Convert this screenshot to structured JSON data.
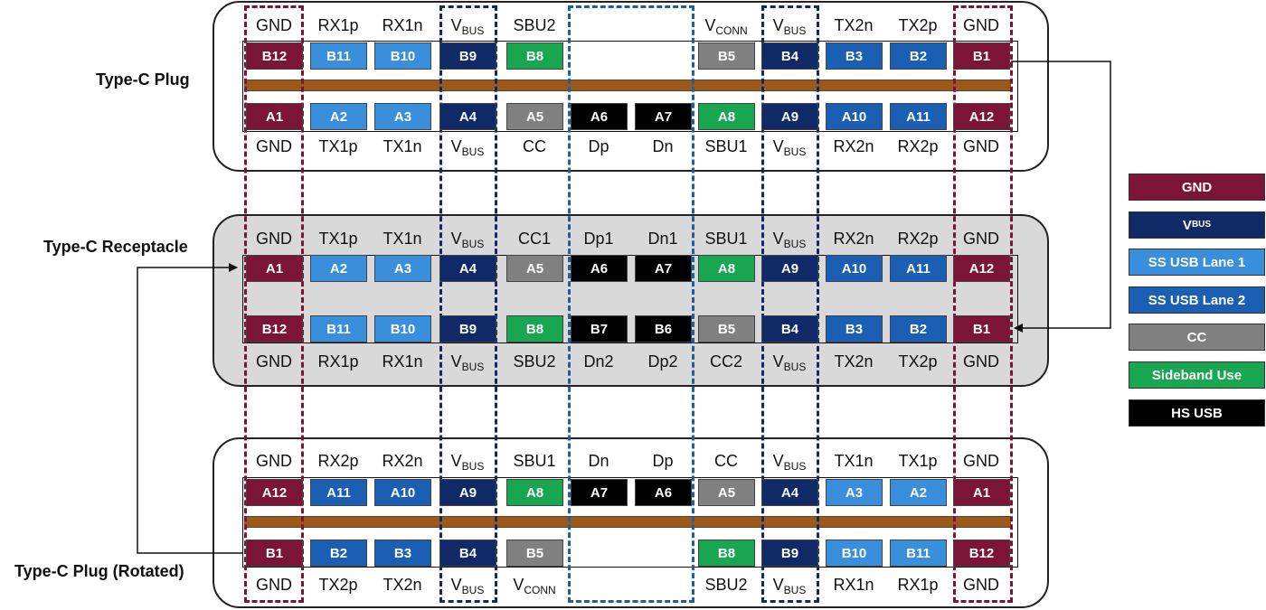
{
  "colors": {
    "gnd": "#7b1436",
    "vbus": "#0f2a66",
    "ss1": "#3a8fdc",
    "ss2": "#1b5fb5",
    "cc": "#808080",
    "sbu": "#18a750",
    "hs": "#000000",
    "empty": "#ffffff",
    "tongue": "#9a5a1e"
  },
  "labels": {
    "plug": "Type-C Plug",
    "receptacle": "Type-C Receptacle",
    "rotated": "Type-C Plug (Rotated)"
  },
  "legend": [
    {
      "key": "gnd",
      "label": "GND",
      "sub": ""
    },
    {
      "key": "vbus",
      "label": "V",
      "sub": "BUS"
    },
    {
      "key": "ss1",
      "label": "SS USB Lane 1",
      "sub": ""
    },
    {
      "key": "ss2",
      "label": "SS USB Lane 2",
      "sub": ""
    },
    {
      "key": "cc",
      "label": "CC",
      "sub": ""
    },
    {
      "key": "sbu",
      "label": "Sideband Use",
      "sub": ""
    },
    {
      "key": "hs",
      "label": "HS USB",
      "sub": ""
    }
  ],
  "plug": {
    "top_signals": [
      [
        "GND",
        ""
      ],
      [
        "RX1p",
        ""
      ],
      [
        "RX1n",
        ""
      ],
      [
        "V",
        "BUS"
      ],
      [
        "SBU2",
        ""
      ],
      [
        "",
        ""
      ],
      [
        "",
        ""
      ],
      [
        "V",
        "CONN"
      ],
      [
        "V",
        "BUS"
      ],
      [
        "TX2n",
        ""
      ],
      [
        "TX2p",
        ""
      ],
      [
        "GND",
        ""
      ]
    ],
    "top_pins": [
      [
        "B12",
        "gnd"
      ],
      [
        "B11",
        "ss1"
      ],
      [
        "B10",
        "ss1"
      ],
      [
        "B9",
        "vbus"
      ],
      [
        "B8",
        "sbu"
      ],
      [
        "",
        "empty"
      ],
      [
        "",
        "empty"
      ],
      [
        "B5",
        "cc"
      ],
      [
        "B4",
        "vbus"
      ],
      [
        "B3",
        "ss2"
      ],
      [
        "B2",
        "ss2"
      ],
      [
        "B1",
        "gnd"
      ]
    ],
    "bottom_pins": [
      [
        "A1",
        "gnd"
      ],
      [
        "A2",
        "ss1"
      ],
      [
        "A3",
        "ss1"
      ],
      [
        "A4",
        "vbus"
      ],
      [
        "A5",
        "cc"
      ],
      [
        "A6",
        "hs"
      ],
      [
        "A7",
        "hs"
      ],
      [
        "A8",
        "sbu"
      ],
      [
        "A9",
        "vbus"
      ],
      [
        "A10",
        "ss2"
      ],
      [
        "A11",
        "ss2"
      ],
      [
        "A12",
        "gnd"
      ]
    ],
    "bottom_signals": [
      [
        "GND",
        ""
      ],
      [
        "TX1p",
        ""
      ],
      [
        "TX1n",
        ""
      ],
      [
        "V",
        "BUS"
      ],
      [
        "CC",
        ""
      ],
      [
        "Dp",
        ""
      ],
      [
        "Dn",
        ""
      ],
      [
        "SBU1",
        ""
      ],
      [
        "V",
        "BUS"
      ],
      [
        "RX2n",
        ""
      ],
      [
        "RX2p",
        ""
      ],
      [
        "GND",
        ""
      ]
    ]
  },
  "receptacle": {
    "top_signals": [
      [
        "GND",
        ""
      ],
      [
        "TX1p",
        ""
      ],
      [
        "TX1n",
        ""
      ],
      [
        "V",
        "BUS"
      ],
      [
        "CC1",
        ""
      ],
      [
        "Dp1",
        ""
      ],
      [
        "Dn1",
        ""
      ],
      [
        "SBU1",
        ""
      ],
      [
        "V",
        "BUS"
      ],
      [
        "RX2n",
        ""
      ],
      [
        "RX2p",
        ""
      ],
      [
        "GND",
        ""
      ]
    ],
    "top_pins": [
      [
        "A1",
        "gnd"
      ],
      [
        "A2",
        "ss1"
      ],
      [
        "A3",
        "ss1"
      ],
      [
        "A4",
        "vbus"
      ],
      [
        "A5",
        "cc"
      ],
      [
        "A6",
        "hs"
      ],
      [
        "A7",
        "hs"
      ],
      [
        "A8",
        "sbu"
      ],
      [
        "A9",
        "vbus"
      ],
      [
        "A10",
        "ss2"
      ],
      [
        "A11",
        "ss2"
      ],
      [
        "A12",
        "gnd"
      ]
    ],
    "bottom_pins": [
      [
        "B12",
        "gnd"
      ],
      [
        "B11",
        "ss1"
      ],
      [
        "B10",
        "ss1"
      ],
      [
        "B9",
        "vbus"
      ],
      [
        "B8",
        "sbu"
      ],
      [
        "B7",
        "hs"
      ],
      [
        "B6",
        "hs"
      ],
      [
        "B5",
        "cc"
      ],
      [
        "B4",
        "vbus"
      ],
      [
        "B3",
        "ss2"
      ],
      [
        "B2",
        "ss2"
      ],
      [
        "B1",
        "gnd"
      ]
    ],
    "bottom_signals": [
      [
        "GND",
        ""
      ],
      [
        "RX1p",
        ""
      ],
      [
        "RX1n",
        ""
      ],
      [
        "V",
        "BUS"
      ],
      [
        "SBU2",
        ""
      ],
      [
        "Dn2",
        ""
      ],
      [
        "Dp2",
        ""
      ],
      [
        "CC2",
        ""
      ],
      [
        "V",
        "BUS"
      ],
      [
        "TX2n",
        ""
      ],
      [
        "TX2p",
        ""
      ],
      [
        "GND",
        ""
      ]
    ]
  },
  "rotated": {
    "top_signals": [
      [
        "GND",
        ""
      ],
      [
        "RX2p",
        ""
      ],
      [
        "RX2n",
        ""
      ],
      [
        "V",
        "BUS"
      ],
      [
        "SBU1",
        ""
      ],
      [
        "Dn",
        ""
      ],
      [
        "Dp",
        ""
      ],
      [
        "CC",
        ""
      ],
      [
        "V",
        "BUS"
      ],
      [
        "TX1n",
        ""
      ],
      [
        "TX1p",
        ""
      ],
      [
        "GND",
        ""
      ]
    ],
    "top_pins": [
      [
        "A12",
        "gnd"
      ],
      [
        "A11",
        "ss2"
      ],
      [
        "A10",
        "ss2"
      ],
      [
        "A9",
        "vbus"
      ],
      [
        "A8",
        "sbu"
      ],
      [
        "A7",
        "hs"
      ],
      [
        "A6",
        "hs"
      ],
      [
        "A5",
        "cc"
      ],
      [
        "A4",
        "vbus"
      ],
      [
        "A3",
        "ss1"
      ],
      [
        "A2",
        "ss1"
      ],
      [
        "A1",
        "gnd"
      ]
    ],
    "bottom_pins": [
      [
        "B1",
        "gnd"
      ],
      [
        "B2",
        "ss2"
      ],
      [
        "B3",
        "ss2"
      ],
      [
        "B4",
        "vbus"
      ],
      [
        "B5",
        "cc"
      ],
      [
        "",
        "empty"
      ],
      [
        "",
        "empty"
      ],
      [
        "B8",
        "sbu"
      ],
      [
        "B9",
        "vbus"
      ],
      [
        "B10",
        "ss1"
      ],
      [
        "B11",
        "ss1"
      ],
      [
        "B12",
        "gnd"
      ]
    ],
    "bottom_signals": [
      [
        "GND",
        ""
      ],
      [
        "TX2p",
        ""
      ],
      [
        "TX2n",
        ""
      ],
      [
        "V",
        "BUS"
      ],
      [
        "V",
        "CONN"
      ],
      [
        "",
        ""
      ],
      [
        "",
        ""
      ],
      [
        "SBU2",
        ""
      ],
      [
        "V",
        "BUS"
      ],
      [
        "RX1n",
        ""
      ],
      [
        "RX1p",
        ""
      ],
      [
        "GND",
        ""
      ]
    ]
  }
}
